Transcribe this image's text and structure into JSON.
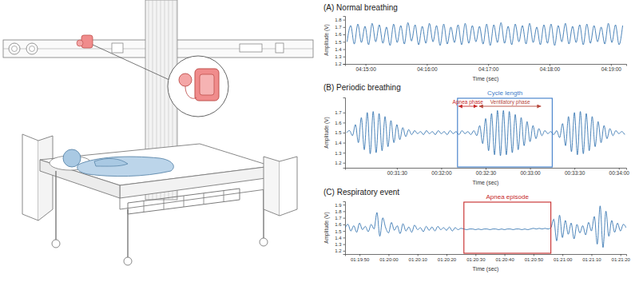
{
  "chart_data": [
    {
      "type": "line",
      "title": "(A) Normal breathing",
      "x_label": "Time (sec)",
      "y_label": "Amplitude (V)",
      "color": "#1f66a8",
      "xlim": [
        15280,
        15555
      ],
      "xticks": [
        {
          "value": 15300,
          "label": "04:15:00"
        },
        {
          "value": 15360,
          "label": "04:16:00"
        },
        {
          "value": 15420,
          "label": "04:17:00"
        },
        {
          "value": 15480,
          "label": "04:18:00"
        },
        {
          "value": 15540,
          "label": "04:19:00"
        }
      ],
      "ylim": [
        1.2,
        1.85
      ],
      "yticks": [
        1.2,
        1.3,
        1.4,
        1.5,
        1.6,
        1.7,
        1.8
      ],
      "x": [
        15282,
        15285.5,
        15289,
        15292.5,
        15296,
        15299.5,
        15303,
        15306.5,
        15310,
        15313.5,
        15317,
        15320.5,
        15324,
        15327.5,
        15331,
        15334.5,
        15338,
        15341.5,
        15345,
        15348.5,
        15352,
        15355.5,
        15359,
        15362.5,
        15366,
        15369.5,
        15373,
        15376.5,
        15380,
        15383.5,
        15387,
        15390.5,
        15394,
        15397.5,
        15401,
        15404.5,
        15408,
        15411.5,
        15415,
        15418.5,
        15422,
        15425.5,
        15429,
        15432.5,
        15436,
        15439.5,
        15443,
        15446.5,
        15450,
        15453.5,
        15457,
        15460.5,
        15464,
        15467.5,
        15471,
        15474.5,
        15478,
        15481.5,
        15485,
        15488.5,
        15492,
        15495.5,
        15499,
        15502.5,
        15506,
        15509.5,
        15513,
        15516.5,
        15520,
        15523.5,
        15527,
        15530.5,
        15534,
        15537.5,
        15541,
        15544.5,
        15548,
        15551.5
      ],
      "values": [
        1.5,
        1.72,
        1.47,
        1.74,
        1.49,
        1.71,
        1.46,
        1.75,
        1.5,
        1.73,
        1.48,
        1.7,
        1.45,
        1.74,
        1.49,
        1.72,
        1.47,
        1.76,
        1.51,
        1.73,
        1.46,
        1.71,
        1.48,
        1.75,
        1.5,
        1.72,
        1.45,
        1.74,
        1.47,
        1.7,
        1.49,
        1.73,
        1.46,
        1.75,
        1.48,
        1.72,
        1.5,
        1.71,
        1.47,
        1.74,
        1.45,
        1.73,
        1.49,
        1.76,
        1.48,
        1.71,
        1.46,
        1.74,
        1.5,
        1.72,
        1.47,
        1.75,
        1.49,
        1.7,
        1.46,
        1.73,
        1.48,
        1.74,
        1.45,
        1.72,
        1.5,
        1.75,
        1.47,
        1.71,
        1.49,
        1.73,
        1.46,
        1.74,
        1.48,
        1.72,
        1.5,
        1.7,
        1.47,
        1.75,
        1.49,
        1.73,
        1.46,
        1.72
      ]
    },
    {
      "type": "line",
      "title": "(B) Periodic breathing",
      "x_label": "Time (sec)",
      "y_label": "Amplitude (V)",
      "color": "#1f66a8",
      "xlim": [
        1855,
        2045
      ],
      "xticks": [
        {
          "value": 1890,
          "label": "00:31:30"
        },
        {
          "value": 1920,
          "label": "00:32:00"
        },
        {
          "value": 1950,
          "label": "00:32:30"
        },
        {
          "value": 1980,
          "label": "00:33:00"
        },
        {
          "value": 2010,
          "label": "00:33:30"
        },
        {
          "value": 2040,
          "label": "00:34:00"
        }
      ],
      "ylim": [
        1.15,
        1.85
      ],
      "yticks": [
        1.2,
        1.3,
        1.4,
        1.5,
        1.6,
        1.7
      ],
      "annotations": [
        {
          "type": "box",
          "text": "Cycle length",
          "x": [
            1931,
            1995
          ],
          "color": "#3d7cc9"
        },
        {
          "type": "arrow",
          "text": "Apnea phase",
          "x": [
            1931,
            1945
          ],
          "color": "#c62828"
        },
        {
          "type": "arrow",
          "text": "Ventilatory phase",
          "x": [
            1945,
            1988
          ],
          "color": "#b5473a"
        }
      ],
      "x": [
        1856,
        1858,
        1860,
        1862,
        1864,
        1866,
        1868,
        1870,
        1872,
        1874,
        1876,
        1878,
        1880,
        1882,
        1884,
        1886,
        1888,
        1890,
        1892,
        1894,
        1896,
        1898,
        1900,
        1902,
        1904,
        1906,
        1908,
        1910,
        1912,
        1914,
        1916,
        1918,
        1920,
        1922,
        1924,
        1926,
        1928,
        1930,
        1932,
        1934,
        1936,
        1938,
        1940,
        1942,
        1944,
        1946,
        1948,
        1950,
        1952,
        1954,
        1956,
        1958,
        1960,
        1962,
        1964,
        1966,
        1968,
        1970,
        1972,
        1974,
        1976,
        1978,
        1980,
        1982,
        1984,
        1986,
        1988,
        1990,
        1992,
        1994,
        1996,
        1998,
        2000,
        2002,
        2004,
        2006,
        2008,
        2010,
        2012,
        2014,
        2016,
        2018,
        2020,
        2022,
        2024,
        2026,
        2028,
        2030,
        2032,
        2034,
        2036,
        2038,
        2040,
        2042,
        2044
      ],
      "values": [
        1.5,
        1.52,
        1.47,
        1.58,
        1.4,
        1.65,
        1.33,
        1.7,
        1.29,
        1.71,
        1.3,
        1.69,
        1.32,
        1.66,
        1.36,
        1.62,
        1.4,
        1.58,
        1.43,
        1.55,
        1.46,
        1.53,
        1.48,
        1.52,
        1.49,
        1.51,
        1.48,
        1.52,
        1.49,
        1.51,
        1.48,
        1.52,
        1.49,
        1.51,
        1.48,
        1.52,
        1.49,
        1.51,
        1.48,
        1.52,
        1.49,
        1.51,
        1.48,
        1.52,
        1.47,
        1.57,
        1.39,
        1.64,
        1.32,
        1.69,
        1.28,
        1.72,
        1.27,
        1.72,
        1.28,
        1.71,
        1.3,
        1.68,
        1.33,
        1.65,
        1.37,
        1.61,
        1.41,
        1.57,
        1.44,
        1.54,
        1.47,
        1.52,
        1.49,
        1.51,
        1.48,
        1.52,
        1.45,
        1.59,
        1.37,
        1.66,
        1.31,
        1.7,
        1.28,
        1.71,
        1.29,
        1.69,
        1.32,
        1.66,
        1.36,
        1.61,
        1.4,
        1.57,
        1.44,
        1.54,
        1.47,
        1.52,
        1.49,
        1.51,
        1.48
      ]
    },
    {
      "type": "line",
      "title": "(C) Respiratory event",
      "x_label": "Time (sec)",
      "y_label": "Amplitude (V)",
      "color": "#1f66a8",
      "xlim": [
        4785,
        4882
      ],
      "xticks": [
        {
          "value": 4790,
          "label": "01:19:50"
        },
        {
          "value": 4800,
          "label": "01:20:00"
        },
        {
          "value": 4810,
          "label": "01:20:10"
        },
        {
          "value": 4820,
          "label": "01:20:20"
        },
        {
          "value": 4830,
          "label": "01:20:30"
        },
        {
          "value": 4840,
          "label": "01:20:40"
        },
        {
          "value": 4850,
          "label": "01:20:50"
        },
        {
          "value": 4860,
          "label": "01:21:00"
        },
        {
          "value": 4870,
          "label": "01:21:10"
        },
        {
          "value": 4880,
          "label": "01:21:20"
        }
      ],
      "ylim": [
        1.15,
        1.95
      ],
      "yticks": [
        1.2,
        1.3,
        1.4,
        1.5,
        1.6,
        1.7,
        1.8,
        1.9
      ],
      "annotations": [
        {
          "type": "box",
          "text": "Apnea episode",
          "x": [
            4826,
            4856
          ],
          "color": "#c62828"
        }
      ],
      "x": [
        4785,
        4786,
        4787,
        4788,
        4789,
        4790,
        4791,
        4792,
        4793,
        4794,
        4795,
        4796,
        4797,
        4798,
        4799,
        4800,
        4801,
        4802,
        4803,
        4804,
        4805,
        4806,
        4807,
        4808,
        4809,
        4810,
        4811,
        4812,
        4813,
        4814,
        4815,
        4816,
        4817,
        4818,
        4819,
        4820,
        4821,
        4822,
        4823,
        4824,
        4825,
        4826,
        4827,
        4828,
        4829,
        4830,
        4831,
        4832,
        4833,
        4834,
        4835,
        4836,
        4837,
        4838,
        4839,
        4840,
        4841,
        4842,
        4843,
        4844,
        4845,
        4846,
        4847,
        4848,
        4849,
        4850,
        4851,
        4852,
        4853,
        4854,
        4855,
        4856,
        4857,
        4858,
        4859,
        4860,
        4861,
        4862,
        4863,
        4864,
        4865,
        4866,
        4867,
        4868,
        4869,
        4870,
        4871,
        4872,
        4873,
        4874,
        4875,
        4876,
        4877,
        4878,
        4879,
        4880,
        4881,
        4882
      ],
      "values": [
        1.55,
        1.6,
        1.5,
        1.58,
        1.48,
        1.62,
        1.52,
        1.57,
        1.49,
        1.6,
        1.53,
        1.78,
        1.42,
        1.7,
        1.55,
        1.47,
        1.63,
        1.51,
        1.58,
        1.46,
        1.61,
        1.5,
        1.56,
        1.48,
        1.59,
        1.52,
        1.55,
        1.49,
        1.57,
        1.51,
        1.56,
        1.5,
        1.57,
        1.52,
        1.55,
        1.51,
        1.56,
        1.5,
        1.55,
        1.52,
        1.54,
        1.53,
        1.52,
        1.53,
        1.53,
        1.52,
        1.53,
        1.52,
        1.53,
        1.53,
        1.52,
        1.53,
        1.53,
        1.52,
        1.53,
        1.52,
        1.53,
        1.53,
        1.52,
        1.53,
        1.53,
        1.52,
        1.53,
        1.52,
        1.53,
        1.54,
        1.53,
        1.54,
        1.53,
        1.54,
        1.53,
        1.55,
        1.68,
        1.35,
        1.74,
        1.4,
        1.66,
        1.45,
        1.62,
        1.38,
        1.6,
        1.47,
        1.58,
        1.44,
        1.63,
        1.5,
        1.72,
        1.3,
        1.88,
        1.25,
        1.8,
        1.42,
        1.66,
        1.48,
        1.62,
        1.5,
        1.6,
        1.55
      ]
    }
  ]
}
